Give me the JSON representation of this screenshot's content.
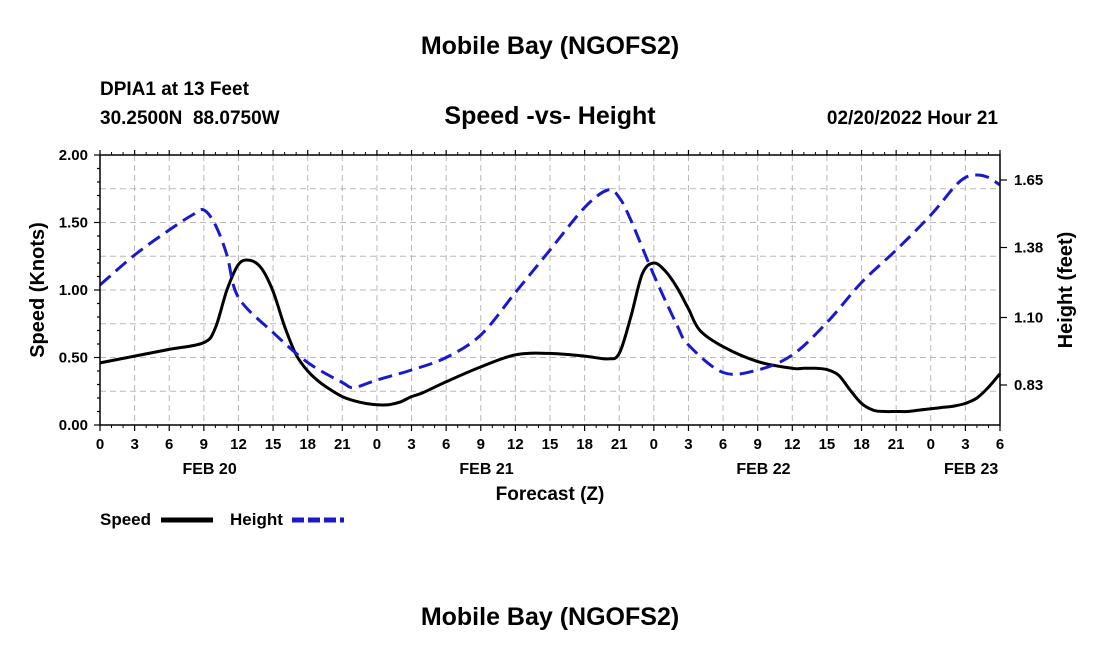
{
  "chart_data": {
    "type": "line",
    "title": "Mobile Bay (NGOFS2)",
    "subtitle": "Speed -vs- Height",
    "footer_title": "Mobile Bay (NGOFS2)",
    "station": "DPIA1 at 13 Feet",
    "coordinates": "30.2500N  88.0750W",
    "timestamp": "02/20/2022 Hour 21",
    "xlabel": "Forecast (Z)",
    "ylabel": "Speed (Knots)",
    "y2label": "Height (feet)",
    "xlim": [
      0,
      78
    ],
    "ylim": [
      0,
      2.0
    ],
    "y2lim": [
      0.67,
      1.75
    ],
    "grid": true,
    "x_ticks": [
      0,
      3,
      6,
      9,
      12,
      15,
      18,
      21,
      24,
      27,
      30,
      33,
      36,
      39,
      42,
      45,
      48,
      51,
      54,
      57,
      60,
      63,
      66,
      69,
      72,
      75,
      78
    ],
    "x_tick_labels": [
      "0",
      "3",
      "6",
      "9",
      "12",
      "15",
      "18",
      "21",
      "0",
      "3",
      "6",
      "9",
      "12",
      "15",
      "18",
      "21",
      "0",
      "3",
      "6",
      "9",
      "12",
      "15",
      "18",
      "21",
      "0",
      "3",
      "6"
    ],
    "day_labels": [
      {
        "x": 9.5,
        "text": "FEB 20"
      },
      {
        "x": 33.5,
        "text": "FEB 21"
      },
      {
        "x": 57.5,
        "text": "FEB 22"
      },
      {
        "x": 75.5,
        "text": "FEB 23"
      }
    ],
    "y_ticks": [
      0,
      0.5,
      1.0,
      1.5,
      2.0
    ],
    "y_tick_labels": [
      "0.00",
      "0.50",
      "1.00",
      "1.50",
      "2.00"
    ],
    "y2_ticks": [
      0.83,
      1.1,
      1.38,
      1.65
    ],
    "y2_tick_labels": [
      "0.83",
      "1.10",
      "1.38",
      "1.65"
    ],
    "legend": [
      {
        "name": "Speed",
        "color": "#000000",
        "style": "solid"
      },
      {
        "name": "Height",
        "color": "#1a1acc",
        "style": "dashed"
      }
    ],
    "series": [
      {
        "name": "Speed",
        "axis": "left",
        "color": "#000000",
        "dash": "none",
        "x": [
          0,
          3,
          6,
          9,
          10,
          11,
          12,
          13,
          14,
          15,
          16,
          17,
          18,
          19,
          20,
          21,
          22,
          23,
          24,
          25,
          26,
          27,
          28,
          30,
          33,
          36,
          39,
          42,
          44,
          45,
          46,
          47,
          48,
          49,
          50,
          51,
          52,
          54,
          57,
          60,
          61,
          62,
          63,
          64,
          65,
          66,
          67,
          68,
          69,
          70,
          71,
          72,
          73,
          74,
          75,
          76,
          77,
          78
        ],
        "values": [
          0.46,
          0.51,
          0.56,
          0.61,
          0.72,
          1.0,
          1.19,
          1.22,
          1.16,
          0.99,
          0.73,
          0.52,
          0.4,
          0.32,
          0.26,
          0.21,
          0.18,
          0.16,
          0.15,
          0.15,
          0.17,
          0.21,
          0.24,
          0.32,
          0.43,
          0.52,
          0.53,
          0.51,
          0.49,
          0.53,
          0.8,
          1.12,
          1.2,
          1.14,
          1.02,
          0.86,
          0.7,
          0.58,
          0.47,
          0.42,
          0.42,
          0.42,
          0.41,
          0.37,
          0.26,
          0.16,
          0.11,
          0.1,
          0.1,
          0.1,
          0.11,
          0.12,
          0.13,
          0.14,
          0.16,
          0.2,
          0.28,
          0.38
        ]
      },
      {
        "name": "Height",
        "axis": "right",
        "color": "#1a1acc",
        "dash": "14,7",
        "x": [
          0,
          3,
          6,
          8,
          9,
          10,
          11,
          12,
          15,
          18,
          21,
          22,
          24,
          27,
          30,
          33,
          36,
          39,
          42,
          44,
          45,
          46,
          48,
          50,
          51,
          54,
          57,
          60,
          63,
          66,
          69,
          72,
          74,
          75,
          76,
          77,
          78
        ],
        "values": [
          1.23,
          1.35,
          1.45,
          1.51,
          1.53,
          1.47,
          1.35,
          1.18,
          1.04,
          0.92,
          0.84,
          0.82,
          0.85,
          0.89,
          0.94,
          1.03,
          1.2,
          1.37,
          1.54,
          1.61,
          1.58,
          1.49,
          1.27,
          1.07,
          0.99,
          0.88,
          0.89,
          0.95,
          1.08,
          1.24,
          1.37,
          1.51,
          1.62,
          1.66,
          1.67,
          1.66,
          1.63
        ]
      }
    ]
  }
}
